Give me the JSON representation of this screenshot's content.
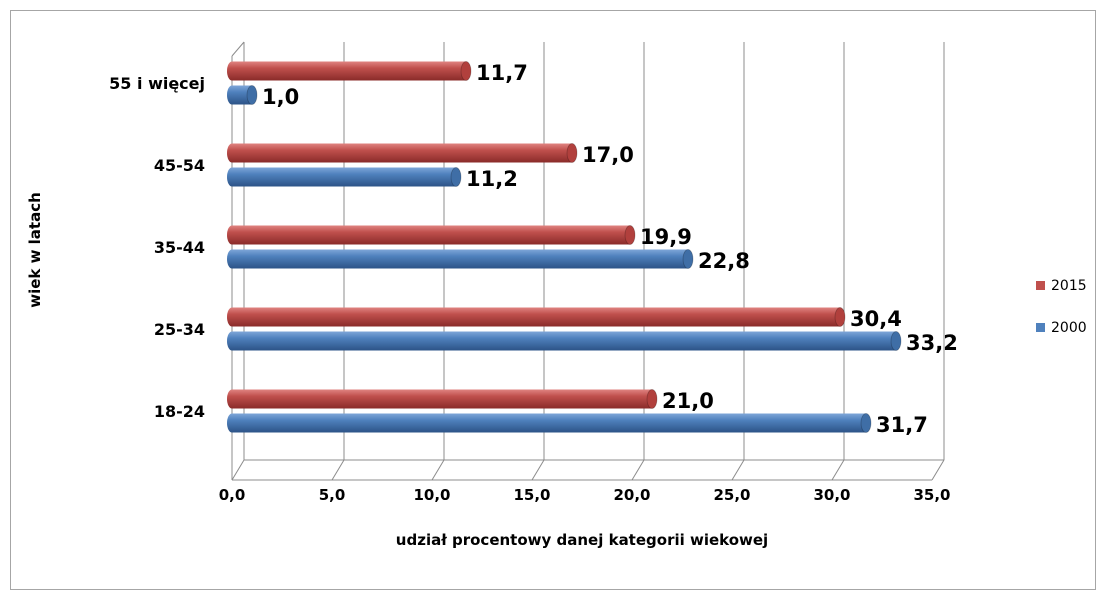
{
  "chart_data": {
    "type": "bar",
    "orientation": "horizontal",
    "categories": [
      "18-24",
      "25-34",
      "35-44",
      "45-54",
      "55 i więcej"
    ],
    "series": [
      {
        "name": "2000",
        "color": "#4f81bd",
        "values": [
          31.7,
          33.2,
          22.8,
          11.2,
          1.0
        ],
        "labels": [
          "31,7",
          "33,2",
          "22,8",
          "11,2",
          "1,0"
        ]
      },
      {
        "name": "2015",
        "color": "#c0504d",
        "values": [
          21.0,
          30.4,
          19.9,
          17.0,
          11.7
        ],
        "labels": [
          "21,0",
          "30,4",
          "19,9",
          "17,0",
          "11,7"
        ]
      }
    ],
    "xlabel": "udział procentowy danej kategorii wiekowej",
    "ylabel": "wiek w latach",
    "xlim": [
      0,
      35
    ],
    "xticks": [
      0,
      5,
      10,
      15,
      20,
      25,
      30,
      35
    ],
    "xtick_labels": [
      "0,0",
      "5,0",
      "10,0",
      "15,0",
      "20,0",
      "25,0",
      "30,0",
      "35,0"
    ],
    "grid": true,
    "legend_position": "right",
    "legend_order": [
      "2015",
      "2000"
    ],
    "style": "3d-cylinder"
  }
}
